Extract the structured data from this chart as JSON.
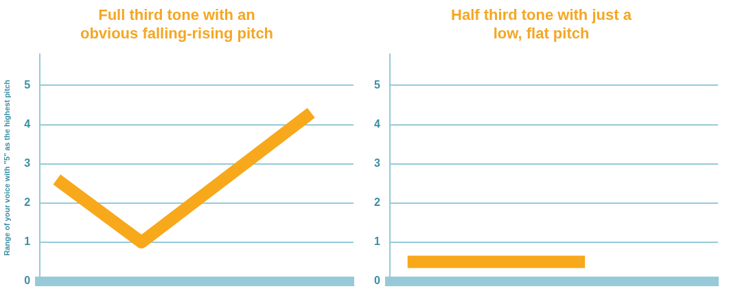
{
  "chart_data": [
    {
      "type": "line",
      "title": "Full third tone with an obvious falling-rising pitch",
      "ylabel": "Range of your voice with \"5\" as the highest pitch",
      "categories": [
        null,
        null,
        null,
        null
      ],
      "series": [
        {
          "color": "#f7a81b",
          "values": [
            2.6,
            1,
            null,
            4.3
          ]
        }
      ],
      "ylim": [
        0,
        5.8
      ],
      "yticks": [
        0,
        1,
        2,
        3,
        4,
        5
      ],
      "tick_labels": "y",
      "grid": "y",
      "legend": false,
      "marker": "none",
      "line_style": "solid"
    },
    {
      "type": "line",
      "title": "Half third tone with just a low, flat pitch",
      "categories": [
        null,
        null,
        null
      ],
      "series": [
        {
          "color": "#f7a81b",
          "values": [
            0.5,
            0.5,
            0.5
          ]
        }
      ],
      "ylim": [
        0,
        5.8
      ],
      "yticks": [
        0,
        1,
        2,
        3,
        4,
        5
      ],
      "tick_labels": "y",
      "grid": "y",
      "legend": false,
      "marker": "none",
      "line_style": "solid"
    }
  ]
}
